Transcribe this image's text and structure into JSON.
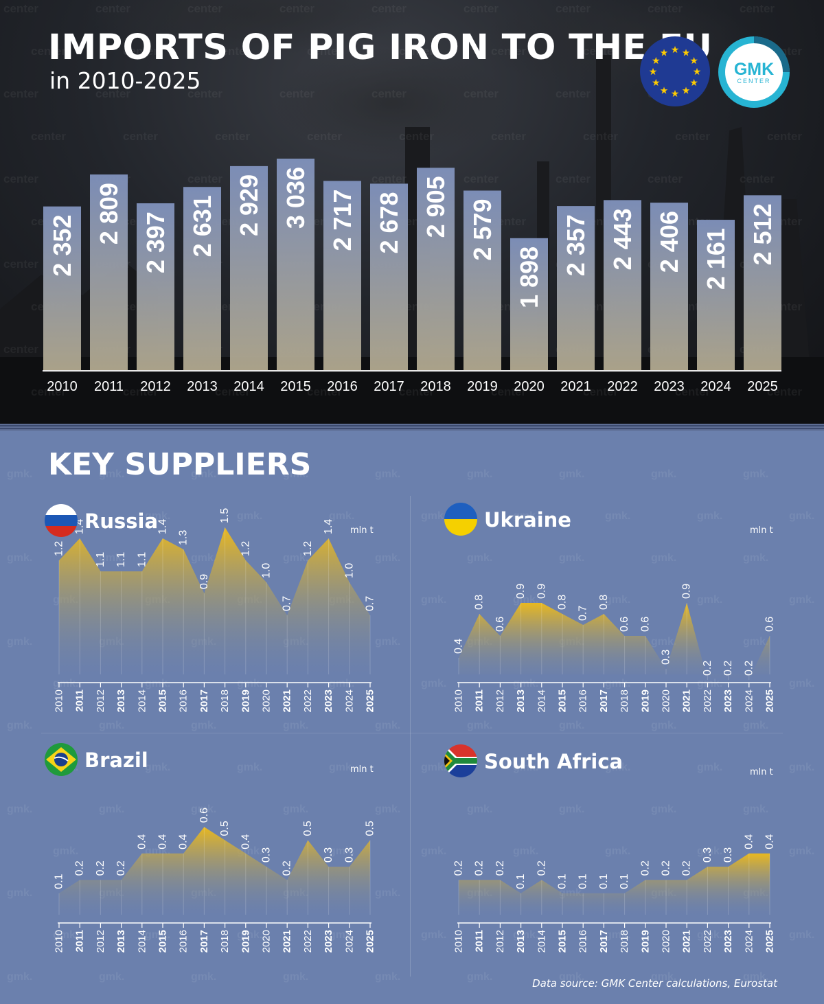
{
  "header": {
    "title": "IMPORTS OF PIG IRON TO THE EU",
    "subtitle": "in 2010-2025",
    "brand_text": "GMK",
    "brand_subtext": "CENTER"
  },
  "colors": {
    "accent_gold": "#e8b820",
    "bar_top": "#8092bd",
    "bar_bottom": "#b2a98f",
    "panel_bg": "#6b80ad",
    "eu_blue": "#1f3a93",
    "eu_star": "#ffcc00",
    "brand_teal": "#27b4d3"
  },
  "chart_data": [
    {
      "id": "eu_total",
      "type": "bar",
      "title": "IMPORTS OF PIG IRON TO THE EU",
      "subtitle": "in 2010-2025",
      "categories": [
        "2010",
        "2011",
        "2012",
        "2013",
        "2014",
        "2015",
        "2016",
        "2017",
        "2018",
        "2019",
        "2020",
        "2021",
        "2022",
        "2023",
        "2024",
        "2025"
      ],
      "values": [
        2352,
        2809,
        2397,
        2631,
        2929,
        3036,
        2717,
        2678,
        2905,
        2579,
        1898,
        2357,
        2443,
        2406,
        2161,
        2512
      ],
      "value_labels": [
        "2 352",
        "2 809",
        "2 397",
        "2 631",
        "2 929",
        "3 036",
        "2 717",
        "2 678",
        "2 905",
        "2 579",
        "1 898",
        "2 357",
        "2 443",
        "2 406",
        "2 161",
        "2 512"
      ],
      "ylim": [
        0,
        3036
      ],
      "grid": false,
      "legend": "none"
    },
    {
      "id": "russia",
      "type": "area",
      "title": "Russia",
      "unit": "mln t",
      "x": [
        "2010",
        "2011",
        "2012",
        "2013",
        "2014",
        "2015",
        "2016",
        "2017",
        "2018",
        "2019",
        "2020",
        "2021",
        "2022",
        "2023",
        "2024",
        "2025"
      ],
      "values": [
        1.2,
        1.4,
        1.1,
        1.1,
        1.1,
        1.4,
        1.3,
        0.9,
        1.5,
        1.2,
        1.0,
        0.7,
        1.2,
        1.4,
        1.0,
        0.7
      ],
      "labels": [
        "1.2",
        "1.4",
        "1.1",
        "1.1",
        "1.1",
        "1.4",
        "1.3",
        "0.9",
        "1.5",
        "1.2",
        "1.0",
        "0.7",
        "1.2",
        "1.4",
        "1.0",
        "0.7"
      ]
    },
    {
      "id": "ukraine",
      "type": "area",
      "title": "Ukraine",
      "unit": "mln t",
      "x": [
        "2010",
        "2011",
        "2012",
        "2013",
        "2014",
        "2015",
        "2016",
        "2017",
        "2018",
        "2019",
        "2020",
        "2021",
        "2022",
        "2023",
        "2024",
        "2025"
      ],
      "values": [
        0.4,
        0.8,
        0.6,
        0.9,
        0.9,
        0.8,
        0.7,
        0.8,
        0.6,
        0.6,
        0.3,
        0.9,
        0.2,
        0.2,
        0.2,
        0.6
      ],
      "labels": [
        "0.4",
        "0.8",
        "0.6",
        "0.9",
        "0.9",
        "0.8",
        "0.7",
        "0.8",
        "0.6",
        "0.6",
        "0.3",
        "0.9",
        "0.2",
        "0.2",
        "0.2",
        "0.6"
      ]
    },
    {
      "id": "brazil",
      "type": "area",
      "title": "Brazil",
      "unit": "mln t",
      "x": [
        "2010",
        "2011",
        "2012",
        "2013",
        "2014",
        "2015",
        "2016",
        "2017",
        "2018",
        "2019",
        "2020",
        "2021",
        "2022",
        "2023",
        "2024",
        "2025"
      ],
      "values": [
        0.1,
        0.2,
        0.2,
        0.2,
        0.4,
        0.4,
        0.4,
        0.6,
        0.5,
        0.4,
        0.3,
        0.2,
        0.5,
        0.3,
        0.3,
        0.5
      ],
      "labels": [
        "0.1",
        "0.2",
        "0.2",
        "0.2",
        "0.4",
        "0.4",
        "0.4",
        "0.6",
        "0.5",
        "0.4",
        "0.3",
        "0.2",
        "0.5",
        "0.3",
        "0.3",
        "0.5"
      ]
    },
    {
      "id": "south_africa",
      "type": "area",
      "title": "South Africa",
      "unit": "mln t",
      "x": [
        "2010",
        "2011",
        "2012",
        "2013",
        "2014",
        "2015",
        "2016",
        "2017",
        "2018",
        "2019",
        "2020",
        "2021",
        "2022",
        "2023",
        "2024",
        "2025"
      ],
      "values": [
        0.2,
        0.2,
        0.2,
        0.1,
        0.2,
        0.1,
        0.1,
        0.1,
        0.1,
        0.2,
        0.2,
        0.2,
        0.3,
        0.3,
        0.4,
        0.4
      ],
      "labels": [
        "0.2",
        "0.2",
        "0.2",
        "0.1",
        "0.2",
        "0.1",
        "0.1",
        "0.1",
        "0.1",
        "0.2",
        "0.2",
        "0.2",
        "0.3",
        "0.3",
        "0.4",
        "0.4"
      ]
    }
  ],
  "key_suppliers": {
    "title": "KEY SUPPLIERS",
    "panels": [
      {
        "country": "Russia",
        "unit": "mln t",
        "flag_icon": "russia-flag-icon"
      },
      {
        "country": "Ukraine",
        "unit": "mln t",
        "flag_icon": "ukraine-flag-icon"
      },
      {
        "country": "Brazil",
        "unit": "mln t",
        "flag_icon": "brazil-flag-icon"
      },
      {
        "country": "South Africa",
        "unit": "mln t",
        "flag_icon": "south-africa-flag-icon"
      }
    ]
  },
  "watermarks": {
    "top": "center",
    "bottom": "gmk."
  },
  "footer": {
    "source": "Data source: GMK Center calculations, Eurostat"
  }
}
